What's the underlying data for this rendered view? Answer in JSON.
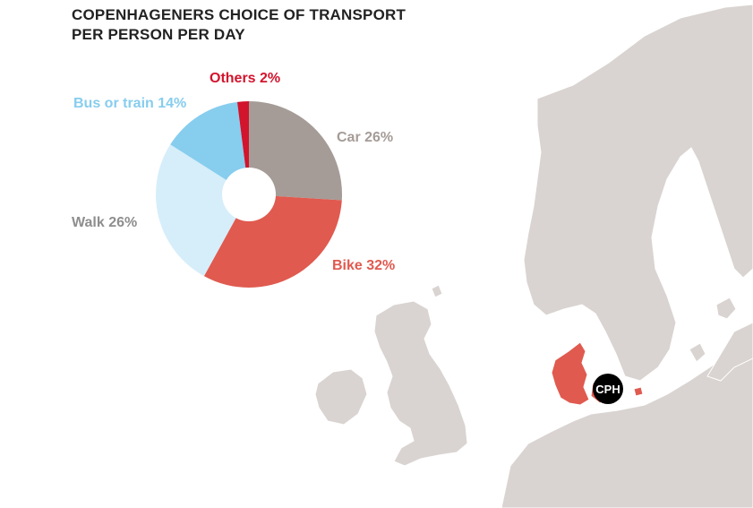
{
  "title_line1": "COPENHAGENERS CHOICE OF TRANSPORT",
  "title_line2": "PER PERSON PER DAY",
  "map": {
    "marker_label": "CPH",
    "land_color": "#d9d4d1",
    "highlight_color": "#e05a4f",
    "marker_color": "#000000"
  },
  "chart_data": {
    "type": "pie",
    "title": "COPENHAGENERS CHOICE OF TRANSPORT PER PERSON PER DAY",
    "donut": true,
    "start_angle_deg": 0,
    "direction": "clockwise",
    "slices": [
      {
        "name": "Car",
        "value": 26,
        "label": "Car 26%",
        "color": "#a59c97",
        "label_color": "#a59c97"
      },
      {
        "name": "Bike",
        "value": 32,
        "label": "Bike 32%",
        "color": "#e05a4f",
        "label_color": "#e05a4f"
      },
      {
        "name": "Walk",
        "value": 26,
        "label": "Walk 26%",
        "color": "#d6eefa",
        "label_color": "#8e8e8e"
      },
      {
        "name": "Bus or train",
        "value": 14,
        "label": "Bus or train 14%",
        "color": "#87cdee",
        "label_color": "#87cdee"
      },
      {
        "name": "Others",
        "value": 2,
        "label": "Others 2%",
        "color": "#d2142d",
        "label_color": "#d2142d"
      }
    ]
  }
}
